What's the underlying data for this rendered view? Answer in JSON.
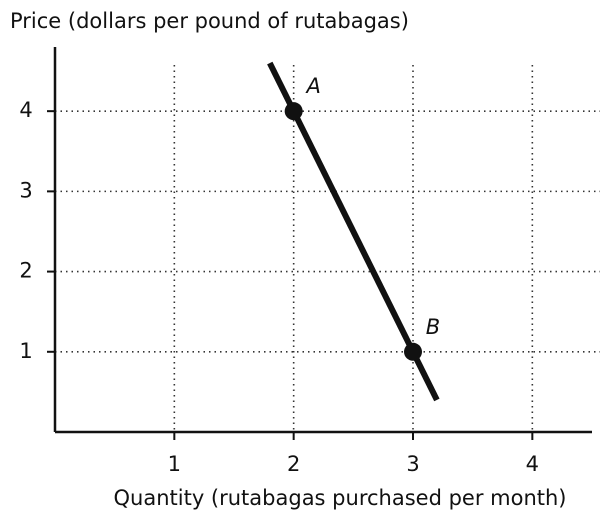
{
  "chart_data": {
    "type": "line",
    "xlabel": "Quantity (rutabagas purchased per month)",
    "ylabel": "Price (dollars per pound of rutabagas)",
    "xlim": [
      0,
      4.5
    ],
    "ylim": [
      0,
      4.8
    ],
    "xticks": [
      1,
      2,
      3,
      4
    ],
    "yticks": [
      1,
      2,
      3,
      4
    ],
    "grid": true,
    "series": [
      {
        "x": [
          1.8,
          3.2
        ],
        "values": [
          4.6,
          0.4
        ],
        "color": "#111111"
      }
    ],
    "points": {
      "x": [
        2,
        3
      ],
      "values": [
        4,
        1
      ],
      "labels": [
        "A",
        "B"
      ],
      "color": "#111111"
    }
  }
}
